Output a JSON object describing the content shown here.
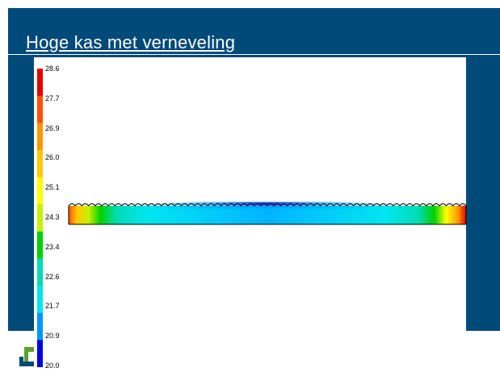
{
  "slide": {
    "title": "Hoge kas met verneveling"
  },
  "colors": {
    "background": "#004a7a",
    "title_text": "#ffffff",
    "plot_background": "#ffffff"
  },
  "colorbar": {
    "labels": [
      "28.6",
      "27.7",
      "26.9",
      "26.0",
      "25.1",
      "24.3",
      "23.4",
      "22.6",
      "21.7",
      "20.9",
      "20.0"
    ],
    "segments": [
      "#e60000",
      "#ff5000",
      "#ff9600",
      "#ffc800",
      "#ffff00",
      "#c8f000",
      "#00d200",
      "#00dcb4",
      "#00e6f0",
      "#0096ff",
      "#0000e6"
    ]
  },
  "icons": {
    "logo": "company-logo-icon"
  }
}
